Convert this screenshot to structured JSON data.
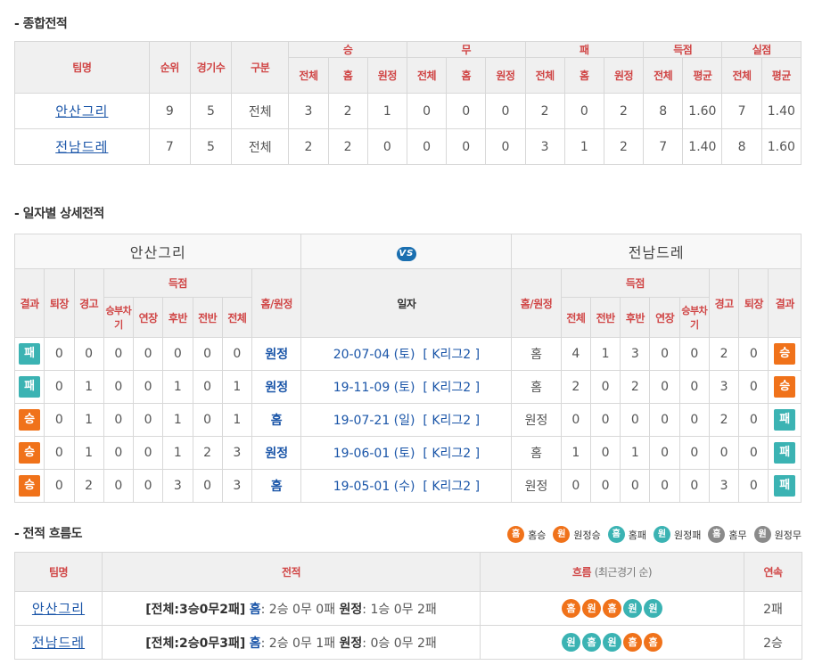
{
  "section1": {
    "title": "- 종합전적"
  },
  "overall": {
    "headers": {
      "team": "팀명",
      "rank": "순위",
      "games": "경기수",
      "kind": "구분",
      "win": "승",
      "draw": "무",
      "loss": "패",
      "gf": "득점",
      "ga": "실점",
      "total": "전체",
      "home": "홈",
      "away": "원정",
      "avg": "평균"
    },
    "rows": [
      {
        "team": "안산그리",
        "rank": "9",
        "games": "5",
        "kind": "전체",
        "w": [
          "3",
          "2",
          "1"
        ],
        "d": [
          "0",
          "0",
          "0"
        ],
        "l": [
          "2",
          "0",
          "2"
        ],
        "gf": [
          "8",
          "1.60"
        ],
        "ga": [
          "7",
          "1.40"
        ]
      },
      {
        "team": "전남드레",
        "rank": "7",
        "games": "5",
        "kind": "전체",
        "w": [
          "2",
          "2",
          "0"
        ],
        "d": [
          "0",
          "0",
          "0"
        ],
        "l": [
          "3",
          "1",
          "2"
        ],
        "gf": [
          "7",
          "1.40"
        ],
        "ga": [
          "8",
          "1.60"
        ]
      }
    ]
  },
  "section2": {
    "title": "- 일자별 상세전적"
  },
  "detail": {
    "left_team": "안산그리",
    "vs": "VS",
    "right_team": "전남드레",
    "headers": {
      "result": "결과",
      "sendoff": "퇴장",
      "warning": "경고",
      "score": "득점",
      "pk": "승부차기",
      "et": "연장",
      "second": "후반",
      "first": "전반",
      "total": "전체",
      "homeaway": "홈/원정",
      "date": "일자"
    },
    "rows": [
      {
        "lres": "패",
        "lresType": "lose",
        "l": [
          "0",
          "0",
          "0",
          "0",
          "0",
          "0",
          "0"
        ],
        "lha": "원정",
        "date": "20-07-04 (토)",
        "league": "[ K리그2 ]",
        "rha": "홈",
        "r": [
          "4",
          "1",
          "3",
          "0",
          "0",
          "2",
          "0"
        ],
        "rres": "승",
        "rresType": "win"
      },
      {
        "lres": "패",
        "lresType": "lose",
        "l": [
          "0",
          "1",
          "0",
          "0",
          "1",
          "0",
          "1"
        ],
        "lha": "원정",
        "date": "19-11-09 (토)",
        "league": "[ K리그2 ]",
        "rha": "홈",
        "r": [
          "2",
          "0",
          "2",
          "0",
          "0",
          "3",
          "0"
        ],
        "rres": "승",
        "rresType": "win"
      },
      {
        "lres": "승",
        "lresType": "win",
        "l": [
          "0",
          "1",
          "0",
          "0",
          "1",
          "0",
          "1"
        ],
        "lha": "홈",
        "date": "19-07-21 (일)",
        "league": "[ K리그2 ]",
        "rha": "원정",
        "r": [
          "0",
          "0",
          "0",
          "0",
          "0",
          "2",
          "0"
        ],
        "rres": "패",
        "rresType": "lose"
      },
      {
        "lres": "승",
        "lresType": "win",
        "l": [
          "0",
          "1",
          "0",
          "0",
          "1",
          "2",
          "3"
        ],
        "lha": "원정",
        "date": "19-06-01 (토)",
        "league": "[ K리그2 ]",
        "rha": "홈",
        "r": [
          "1",
          "0",
          "1",
          "0",
          "0",
          "0",
          "0"
        ],
        "rres": "패",
        "rresType": "lose"
      },
      {
        "lres": "승",
        "lresType": "win",
        "l": [
          "0",
          "2",
          "0",
          "0",
          "3",
          "0",
          "3"
        ],
        "lha": "홈",
        "date": "19-05-01 (수)",
        "league": "[ K리그2 ]",
        "rha": "원정",
        "r": [
          "0",
          "0",
          "0",
          "0",
          "0",
          "3",
          "0"
        ],
        "rres": "패",
        "rresType": "lose"
      }
    ]
  },
  "section3": {
    "title": "- 전적 흐름도"
  },
  "legend": [
    {
      "glyph": "홈",
      "label": "홈승",
      "type": "c-hw"
    },
    {
      "glyph": "원",
      "label": "원정승",
      "type": "c-aw"
    },
    {
      "glyph": "홈",
      "label": "홈패",
      "type": "c-hl"
    },
    {
      "glyph": "원",
      "label": "원정패",
      "type": "c-al"
    },
    {
      "glyph": "홈",
      "label": "홈무",
      "type": "c-hd"
    },
    {
      "glyph": "원",
      "label": "원정무",
      "type": "c-ad"
    }
  ],
  "flow": {
    "headers": {
      "team": "팀명",
      "record": "전적",
      "flow": "흐름",
      "flow_note": "(최근경기 순)",
      "streak": "연속"
    },
    "rows": [
      {
        "team": "안산그리",
        "total": "[전체:3승0무2패]",
        "home_label": "홈",
        "home": ": 2승 0무 0패",
        "away_label": "원정",
        "away": ": 1승 0무 2패",
        "flow": [
          {
            "g": "홈",
            "c": "#f0721a"
          },
          {
            "g": "원",
            "c": "#f0721a"
          },
          {
            "g": "홈",
            "c": "#f0721a"
          },
          {
            "g": "원",
            "c": "#3bb3b3"
          },
          {
            "g": "원",
            "c": "#3bb3b3"
          }
        ],
        "streak": "2패"
      },
      {
        "team": "전남드레",
        "total": "[전체:2승0무3패]",
        "home_label": "홈",
        "home": ": 2승 0무 1패",
        "away_label": "원정",
        "away": ": 0승 0무 2패",
        "flow": [
          {
            "g": "원",
            "c": "#3bb3b3"
          },
          {
            "g": "홈",
            "c": "#3bb3b3"
          },
          {
            "g": "원",
            "c": "#3bb3b3"
          },
          {
            "g": "홈",
            "c": "#f0721a"
          },
          {
            "g": "홈",
            "c": "#f0721a"
          }
        ],
        "streak": "2승"
      }
    ]
  }
}
